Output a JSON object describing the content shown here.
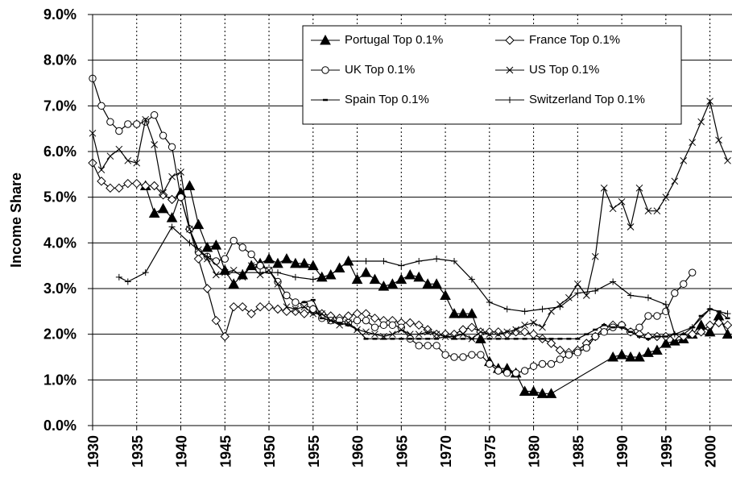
{
  "chart_data": {
    "type": "line",
    "y_label": "Income Share",
    "xlim": [
      1930,
      2002.5
    ],
    "xticks": [
      1930,
      1935,
      1940,
      1945,
      1950,
      1955,
      1960,
      1965,
      1970,
      1975,
      1980,
      1985,
      1990,
      1995,
      2000
    ],
    "ylim": [
      0,
      9
    ],
    "yticks": [
      {
        "value": 0,
        "label": "0.0%"
      },
      {
        "value": 1,
        "label": "1.0%"
      },
      {
        "value": 2,
        "label": "2.0%"
      },
      {
        "value": 3,
        "label": "3.0%"
      },
      {
        "value": 4,
        "label": "4.0%"
      },
      {
        "value": 5,
        "label": "5.0%"
      },
      {
        "value": 6,
        "label": "6.0%"
      },
      {
        "value": 7,
        "label": "7.0%"
      },
      {
        "value": 8,
        "label": "8.0%"
      },
      {
        "value": 9,
        "label": "9.0%"
      }
    ],
    "grid": true,
    "series": [
      {
        "name": "Portugal Top 0.1%",
        "color": "#000000",
        "marker": "triangle",
        "x": [
          1936,
          1937,
          1938,
          1939,
          1940,
          1941,
          1942,
          1943,
          1944,
          1945,
          1946,
          1947,
          1948,
          1949,
          1950,
          1951,
          1952,
          1953,
          1954,
          1955,
          1956,
          1957,
          1958,
          1959,
          1960,
          1961,
          1962,
          1963,
          1964,
          1965,
          1966,
          1967,
          1968,
          1969,
          1970,
          1971,
          1972,
          1973,
          1974,
          1975,
          1976,
          1977,
          1978,
          1979,
          1980,
          1981,
          1982,
          1989,
          1990,
          1991,
          1992,
          1993,
          1994,
          1995,
          1996,
          1997,
          1998,
          1999,
          2000,
          2001,
          2002
        ],
        "values": [
          5.25,
          4.65,
          4.75,
          4.55,
          5.1,
          5.25,
          4.4,
          3.9,
          3.95,
          3.4,
          3.1,
          3.3,
          3.5,
          3.55,
          3.65,
          3.55,
          3.65,
          3.55,
          3.55,
          3.5,
          3.25,
          3.3,
          3.45,
          3.6,
          3.2,
          3.35,
          3.2,
          3.05,
          3.1,
          3.2,
          3.3,
          3.25,
          3.1,
          3.1,
          2.85,
          2.45,
          2.45,
          2.45,
          1.9,
          1.4,
          1.25,
          1.25,
          1.15,
          0.75,
          0.75,
          0.7,
          0.7,
          1.5,
          1.55,
          1.5,
          1.5,
          1.6,
          1.65,
          1.8,
          1.85,
          1.9,
          2.0,
          2.2,
          2.05,
          2.4,
          2.0
        ]
      },
      {
        "name": "France Top 0.1%",
        "color": "#000000",
        "marker": "diamond",
        "x": [
          1930,
          1931,
          1932,
          1933,
          1934,
          1935,
          1936,
          1937,
          1938,
          1939,
          1940,
          1941,
          1942,
          1943,
          1944,
          1945,
          1946,
          1947,
          1948,
          1949,
          1950,
          1951,
          1952,
          1953,
          1954,
          1955,
          1956,
          1957,
          1958,
          1959,
          1960,
          1961,
          1962,
          1963,
          1964,
          1965,
          1966,
          1967,
          1968,
          1969,
          1970,
          1971,
          1972,
          1973,
          1974,
          1975,
          1976,
          1977,
          1978,
          1979,
          1980,
          1981,
          1982,
          1983,
          1984,
          1985,
          1986,
          1987,
          1988,
          1989,
          1990,
          1991,
          1992,
          1993,
          1994,
          1995,
          1996,
          1997,
          1998,
          1999,
          2000,
          2001,
          2002
        ],
        "values": [
          5.75,
          5.35,
          5.2,
          5.2,
          5.3,
          5.3,
          5.25,
          5.25,
          5.05,
          4.95,
          5.0,
          4.3,
          3.65,
          3.0,
          2.3,
          1.95,
          2.6,
          2.6,
          2.45,
          2.6,
          2.6,
          2.55,
          2.5,
          2.5,
          2.45,
          2.5,
          2.45,
          2.4,
          2.35,
          2.4,
          2.45,
          2.45,
          2.35,
          2.3,
          2.3,
          2.25,
          2.25,
          2.2,
          2.1,
          2.0,
          2.0,
          2.0,
          2.1,
          2.15,
          2.05,
          2.05,
          2.05,
          2.0,
          2.05,
          2.05,
          2.0,
          1.9,
          1.8,
          1.65,
          1.6,
          1.65,
          1.8,
          1.95,
          2.15,
          2.2,
          2.2,
          2.05,
          2.0,
          1.95,
          1.95,
          1.95,
          1.95,
          1.95,
          2.0,
          2.05,
          2.2,
          2.25,
          2.2
        ]
      },
      {
        "name": "UK Top 0.1%",
        "color": "#000000",
        "marker": "circle",
        "x": [
          1930,
          1931,
          1932,
          1933,
          1934,
          1935,
          1936,
          1937,
          1938,
          1939,
          1940,
          1941,
          1942,
          1943,
          1944,
          1945,
          1946,
          1947,
          1948,
          1949,
          1950,
          1951,
          1952,
          1953,
          1954,
          1955,
          1956,
          1957,
          1958,
          1959,
          1960,
          1961,
          1962,
          1963,
          1964,
          1965,
          1966,
          1967,
          1968,
          1969,
          1970,
          1971,
          1972,
          1973,
          1974,
          1975,
          1976,
          1977,
          1978,
          1979,
          1980,
          1981,
          1982,
          1983,
          1984,
          1985,
          1986,
          1987,
          1988,
          1989,
          1990,
          1991,
          1992,
          1993,
          1994,
          1995,
          1996,
          1997,
          1998
        ],
        "values": [
          7.6,
          7.0,
          6.65,
          6.45,
          6.6,
          6.6,
          6.65,
          6.8,
          6.35,
          6.1,
          5.0,
          4.3,
          3.8,
          3.7,
          3.6,
          3.65,
          4.05,
          3.9,
          3.75,
          3.5,
          3.4,
          3.15,
          2.85,
          2.7,
          2.65,
          2.55,
          2.35,
          2.3,
          2.3,
          2.25,
          2.3,
          2.3,
          2.15,
          2.2,
          2.2,
          2.15,
          1.9,
          1.75,
          1.75,
          1.75,
          1.55,
          1.5,
          1.5,
          1.55,
          1.55,
          1.35,
          1.2,
          1.15,
          1.15,
          1.2,
          1.3,
          1.35,
          1.35,
          1.45,
          1.55,
          1.6,
          1.7,
          1.95,
          2.05,
          2.15,
          2.2,
          2.05,
          2.15,
          2.4,
          2.4,
          2.5,
          2.9,
          3.1,
          3.35
        ]
      },
      {
        "name": "US Top 0.1%",
        "color": "#000000",
        "marker": "x",
        "x": [
          1930,
          1931,
          1932,
          1933,
          1934,
          1935,
          1936,
          1937,
          1938,
          1939,
          1940,
          1941,
          1942,
          1943,
          1944,
          1945,
          1946,
          1947,
          1948,
          1949,
          1950,
          1951,
          1952,
          1953,
          1954,
          1955,
          1956,
          1957,
          1958,
          1959,
          1960,
          1961,
          1962,
          1963,
          1964,
          1965,
          1966,
          1967,
          1968,
          1969,
          1970,
          1971,
          1972,
          1973,
          1974,
          1975,
          1976,
          1977,
          1978,
          1979,
          1980,
          1981,
          1982,
          1983,
          1984,
          1985,
          1986,
          1987,
          1988,
          1989,
          1990,
          1991,
          1992,
          1993,
          1994,
          1995,
          1996,
          1997,
          1998,
          1999,
          2000,
          2001,
          2002
        ],
        "values": [
          6.4,
          5.6,
          5.9,
          6.05,
          5.8,
          5.75,
          6.7,
          6.15,
          5.1,
          5.45,
          5.55,
          4.3,
          3.85,
          3.65,
          3.3,
          3.35,
          3.4,
          3.25,
          3.5,
          3.3,
          3.4,
          3.1,
          2.6,
          2.55,
          2.6,
          2.45,
          2.45,
          2.3,
          2.2,
          2.25,
          2.1,
          2.05,
          2.0,
          1.95,
          2.0,
          2.1,
          2.0,
          2.0,
          2.05,
          2.0,
          1.95,
          1.95,
          2.0,
          1.9,
          2.05,
          2.0,
          2.0,
          2.05,
          2.1,
          2.2,
          2.25,
          2.15,
          2.5,
          2.65,
          2.8,
          3.1,
          2.85,
          3.7,
          5.2,
          4.75,
          4.9,
          4.35,
          5.2,
          4.7,
          4.7,
          5.0,
          5.35,
          5.8,
          6.2,
          6.65,
          7.1,
          6.25,
          5.8
        ]
      },
      {
        "name": "Spain Top 0.1%",
        "color": "#000000",
        "marker": "dash",
        "x": [
          1954,
          1955,
          1956,
          1957,
          1958,
          1959,
          1960,
          1961,
          1962,
          1963,
          1964,
          1965,
          1966,
          1967,
          1968,
          1969,
          1970,
          1971,
          1972,
          1973,
          1974,
          1975,
          1976,
          1977,
          1978,
          1979,
          1980,
          1981,
          1982,
          1983,
          1984,
          1985,
          1986,
          1987,
          1988,
          1989,
          1990,
          1991,
          1992,
          1993,
          1994,
          1995,
          1996,
          1997,
          1998,
          1999,
          2000,
          2001,
          2002
        ],
        "values": [
          2.7,
          2.75,
          2.35,
          2.3,
          2.25,
          2.2,
          2.1,
          1.9,
          1.9,
          1.9,
          1.9,
          1.9,
          1.9,
          1.9,
          1.9,
          1.9,
          1.95,
          1.9,
          1.9,
          1.9,
          1.9,
          1.9,
          1.9,
          1.9,
          1.9,
          1.9,
          1.9,
          1.9,
          1.9,
          1.9,
          1.9,
          1.9,
          2.0,
          2.1,
          2.2,
          2.15,
          2.15,
          2.05,
          1.95,
          1.9,
          1.95,
          1.95,
          2.0,
          2.0,
          2.15,
          2.4,
          2.55,
          2.5,
          2.35
        ]
      },
      {
        "name": "Switzerland Top 0.1%",
        "color": "#000000",
        "marker": "plus",
        "x": [
          1933,
          1934,
          1936,
          1939,
          1941,
          1943,
          1945,
          1947,
          1949,
          1951,
          1953,
          1955,
          1957,
          1959,
          1961,
          1963,
          1965,
          1967,
          1969,
          1971,
          1973,
          1975,
          1977,
          1979,
          1981,
          1983,
          1985,
          1987,
          1989,
          1991,
          1993,
          1995,
          1996,
          1998,
          2000,
          2002
        ],
        "values": [
          3.25,
          3.15,
          3.35,
          4.35,
          4.0,
          3.7,
          3.35,
          3.35,
          3.35,
          3.35,
          3.25,
          3.2,
          3.3,
          3.6,
          3.6,
          3.6,
          3.5,
          3.6,
          3.65,
          3.6,
          3.2,
          2.7,
          2.55,
          2.5,
          2.55,
          2.6,
          2.9,
          2.95,
          3.15,
          2.85,
          2.8,
          2.65,
          2.0,
          2.15,
          2.55,
          2.45
        ]
      }
    ]
  }
}
